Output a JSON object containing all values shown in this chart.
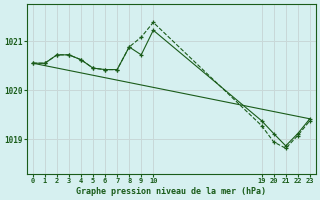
{
  "title": "Graphe pression niveau de la mer (hPa)",
  "background_color": "#d6f0f0",
  "plot_bg": "#d6f0f0",
  "grid_color": "#c8d8d8",
  "line_color": "#1a5c1a",
  "text_color": "#1a5c1a",
  "ylim": [
    1018.3,
    1021.75
  ],
  "yticks": [
    1019,
    1020,
    1021
  ],
  "xlim": [
    -0.5,
    23.5
  ],
  "x_positions": [
    0,
    1,
    2,
    3,
    4,
    5,
    6,
    7,
    8,
    9,
    10,
    19,
    20,
    21,
    22,
    23
  ],
  "x_labels": [
    "0",
    "1",
    "2",
    "3",
    "4",
    "5",
    "6",
    "7",
    "8",
    "9",
    "10",
    "19",
    "20",
    "21",
    "22",
    "23"
  ],
  "series1_x": [
    0,
    1,
    2,
    3,
    4,
    5,
    6,
    7,
    8,
    9,
    10,
    19,
    20,
    21,
    22,
    23
  ],
  "series1_y": [
    1020.55,
    1020.55,
    1020.72,
    1020.72,
    1020.62,
    1020.45,
    1020.42,
    1020.42,
    1020.88,
    1020.72,
    1021.22,
    1019.38,
    1019.12,
    1018.87,
    1019.12,
    1019.42
  ],
  "series2_x": [
    0,
    1,
    2,
    3,
    4,
    5,
    6,
    7,
    8,
    9,
    10,
    19,
    20,
    21,
    22,
    23
  ],
  "series2_y": [
    1020.55,
    1020.55,
    1020.72,
    1020.72,
    1020.62,
    1020.45,
    1020.42,
    1020.42,
    1020.88,
    1021.08,
    1021.38,
    1019.28,
    1018.95,
    1018.82,
    1019.08,
    1019.38
  ],
  "series3_x": [
    0,
    23
  ],
  "series3_y": [
    1020.55,
    1019.42
  ],
  "grid_x_positions": [
    0,
    1,
    2,
    3,
    4,
    5,
    6,
    7,
    8,
    9,
    10,
    19,
    20,
    21,
    22,
    23
  ]
}
